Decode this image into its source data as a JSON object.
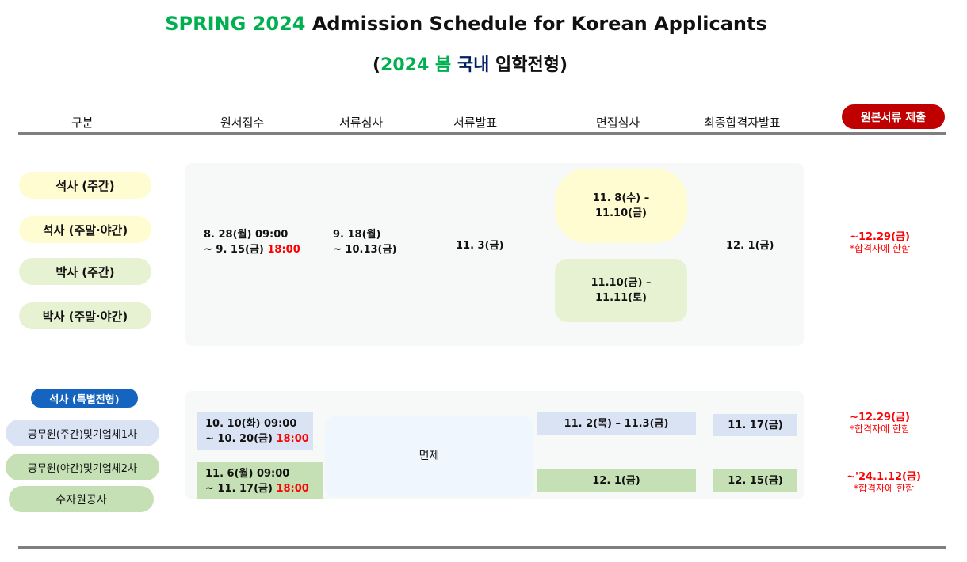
{
  "title": {
    "part1": "SPRING 2024",
    "part2": " Admission Schedule for Korean Applicants"
  },
  "subtitle": {
    "open": "(",
    "year": "2024 봄",
    "domestic": "국내",
    "rest": " 입학전형)"
  },
  "headers": [
    "구분",
    "원서접수",
    "서류심사",
    "서류발표",
    "면접심사",
    "최종합격자발표"
  ],
  "submit_button": "원본서류 제출",
  "regular": {
    "categories": [
      "석사 (주간)",
      "석사 (주말·야간)",
      "박사 (주간)",
      "박사 (주말·야간)"
    ],
    "application": {
      "line1": "8. 28(월) 09:00",
      "line2": "~ 9. 15(금) ",
      "deadline": "18:00"
    },
    "doc_review": {
      "line1": "9. 18(월)",
      "line2": "~ 10.13(금)"
    },
    "doc_result": "11. 3(금)",
    "interview": [
      {
        "line1": "11. 8(수) –",
        "line2": "11.10(금)"
      },
      {
        "line1": "11.10(금) –",
        "line2": "11.11(토)"
      }
    ],
    "final": "12. 1(금)",
    "submission": {
      "date": "~12.29(금)",
      "note": "*합격자에 한함"
    }
  },
  "special": {
    "label": "석사 (특별전형)",
    "categories": [
      "공무원(주간)및기업체1차",
      "공무원(야간)및기업체2차",
      "수자원공사"
    ],
    "application": [
      {
        "line1": "10. 10(화) 09:00",
        "line2": "~ 10. 20(금) ",
        "deadline": "18:00"
      },
      {
        "line1": "11. 6(월) 09:00",
        "line2": "~ 11. 17(금) ",
        "deadline": "18:00"
      }
    ],
    "doc_review": "면제",
    "interview": [
      "11. 2(목) – 11.3(금)",
      "12. 1(금)"
    ],
    "final": [
      "11. 17(금)",
      "12. 15(금)"
    ],
    "submission": [
      {
        "date": "~12.29(금)",
        "note": "*합격자에 한함"
      },
      {
        "date": "~'24.1.12(금)",
        "note": "*합격자에 한함"
      }
    ]
  },
  "colors": {
    "green": "#00B050",
    "navy": "#002060",
    "red": "#FF0000",
    "button": "#C00000",
    "special_label": "#1565C0"
  }
}
